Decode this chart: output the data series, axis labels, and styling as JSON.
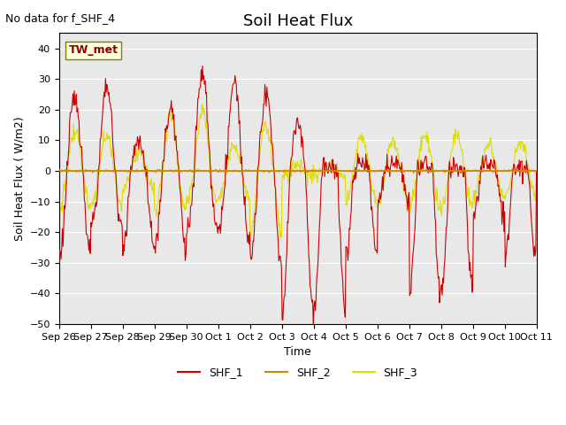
{
  "title": "Soil Heat Flux",
  "ylabel": "Soil Heat Flux ( W/m2)",
  "xlabel": "Time",
  "note": "No data for f_SHF_4",
  "station_label": "TW_met",
  "ylim": [
    -50,
    45
  ],
  "yticks": [
    -50,
    -40,
    -30,
    -20,
    -10,
    0,
    10,
    20,
    30,
    40
  ],
  "xtick_labels": [
    "Sep 26",
    "Sep 27",
    "Sep 28",
    "Sep 29",
    "Sep 30",
    "Oct 1",
    "Oct 2",
    "Oct 3",
    "Oct 4",
    "Oct 5",
    "Oct 6",
    "Oct 7",
    "Oct 8",
    "Oct 9",
    "Oct 10",
    "Oct 11"
  ],
  "color_SHF1": "#cc0000",
  "color_SHF2": "#cc8800",
  "color_SHF3": "#dddd00",
  "background_color": "#e8e8e8",
  "hline_color": "#cc8800",
  "legend_labels": [
    "SHF_1",
    "SHF_2",
    "SHF_3"
  ],
  "title_fontsize": 13,
  "note_fontsize": 9,
  "label_fontsize": 9,
  "tick_fontsize": 8
}
